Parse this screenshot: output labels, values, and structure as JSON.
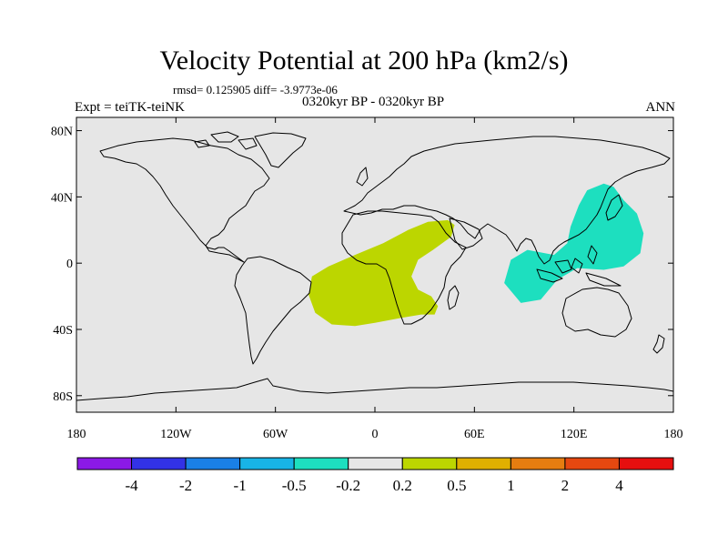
{
  "title": "Velocity Potential at 200 hPa (km2/s)",
  "stats": "rmsd= 0.125905  diff= -3.9773e-06",
  "experiment": "Expt = teiTK-teiNK",
  "period": "0320kyr BP - 0320kyr BP",
  "season": "ANN",
  "map": {
    "background_color": "#e6e6e6",
    "coastline_color": "#000000",
    "lat_labels": [
      {
        "lat": 80,
        "label": "80N"
      },
      {
        "lat": 40,
        "label": "40N"
      },
      {
        "lat": 0,
        "label": "0"
      },
      {
        "lat": -40,
        "label": "40S"
      },
      {
        "lat": -80,
        "label": "80S"
      }
    ],
    "lon_labels": [
      {
        "lon": -180,
        "label": "180"
      },
      {
        "lon": -120,
        "label": "120W"
      },
      {
        "lon": -60,
        "label": "60W"
      },
      {
        "lon": 0,
        "label": "0"
      },
      {
        "lon": 60,
        "label": "60E"
      },
      {
        "lon": 120,
        "label": "120E"
      },
      {
        "lon": 180,
        "label": "180"
      }
    ],
    "anomalies": [
      {
        "name": "positive-anomaly-atlantic-africa",
        "class": "0.2 to 0.5",
        "color": "#bcd600",
        "lonlat": [
          [
            -38,
            -8
          ],
          [
            -28,
            -2
          ],
          [
            -12,
            5
          ],
          [
            5,
            12
          ],
          [
            20,
            20
          ],
          [
            32,
            25
          ],
          [
            44,
            26
          ],
          [
            48,
            23
          ],
          [
            46,
            16
          ],
          [
            35,
            8
          ],
          [
            26,
            2
          ],
          [
            22,
            -8
          ],
          [
            26,
            -16
          ],
          [
            34,
            -20
          ],
          [
            38,
            -26
          ],
          [
            36,
            -31
          ],
          [
            28,
            -31
          ],
          [
            16,
            -33
          ],
          [
            0,
            -36
          ],
          [
            -12,
            -38
          ],
          [
            -26,
            -37
          ],
          [
            -36,
            -30
          ],
          [
            -40,
            -19
          ]
        ]
      },
      {
        "name": "negative-anomaly-maritime-continent",
        "class": "-0.5 to -0.2",
        "color": "#1ddfbf",
        "lonlat": [
          [
            78,
            -12
          ],
          [
            82,
            2
          ],
          [
            92,
            8
          ],
          [
            108,
            5
          ],
          [
            116,
            12
          ],
          [
            118,
            22
          ],
          [
            123,
            35
          ],
          [
            128,
            44
          ],
          [
            138,
            48
          ],
          [
            144,
            46
          ],
          [
            150,
            38
          ],
          [
            158,
            30
          ],
          [
            162,
            18
          ],
          [
            160,
            6
          ],
          [
            150,
            -2
          ],
          [
            138,
            -4
          ],
          [
            122,
            -3
          ],
          [
            110,
            -10
          ],
          [
            100,
            -22
          ],
          [
            88,
            -24
          ]
        ]
      }
    ]
  },
  "colorbar": {
    "colors": [
      "#8b19e6",
      "#3232e6",
      "#1a80e6",
      "#18b4e6",
      "#1ddfbf",
      "#e6e6e6",
      "#bcd600",
      "#e0b000",
      "#e67d10",
      "#e64810",
      "#e60f0f"
    ],
    "labels": [
      "-4",
      "-2",
      "-1",
      "-0.5",
      "-0.2",
      "0.2",
      "0.5",
      "1",
      "2",
      "4"
    ]
  }
}
